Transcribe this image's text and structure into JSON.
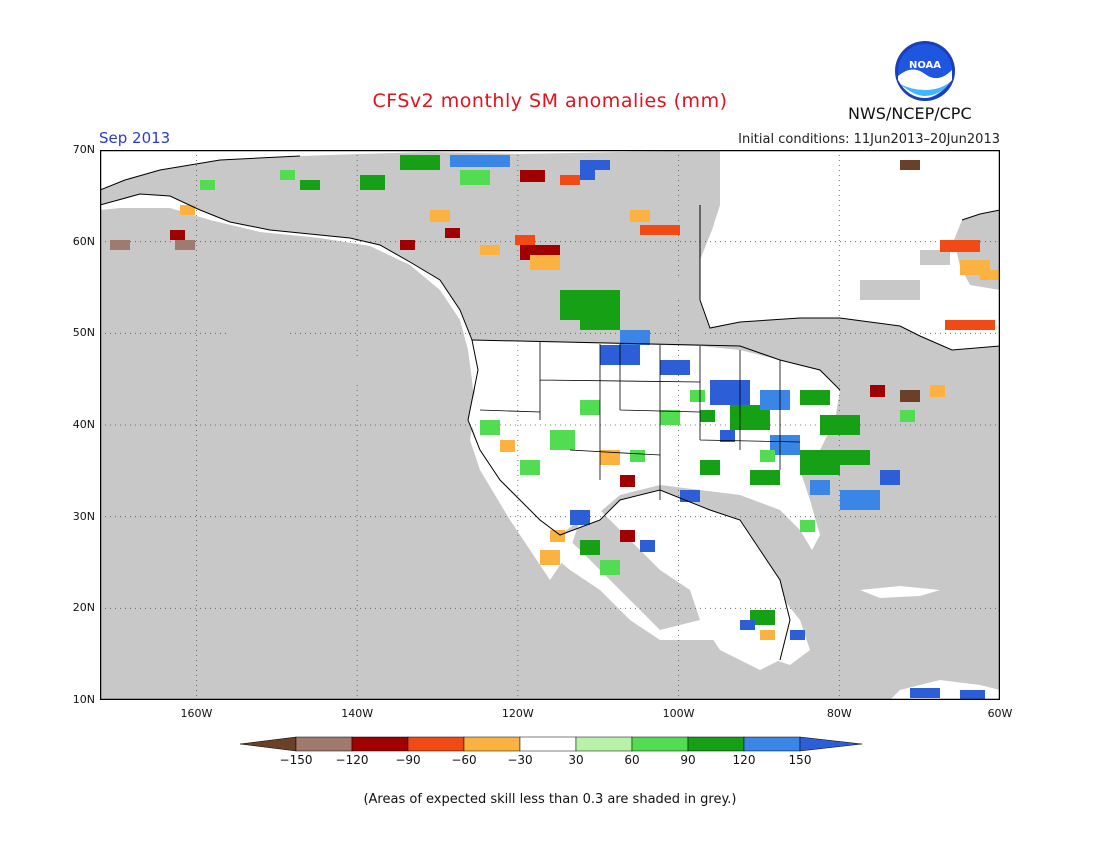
{
  "header": {
    "title": "CFSv2 monthly SM anomalies (mm)",
    "month": "Sep 2013",
    "initial_conditions": "Initial conditions: 11Jun2013–20Jun2013",
    "agency": "NWS/NCEP/CPC",
    "logo_text": "NOAA"
  },
  "map": {
    "lon_range": [
      -172,
      -60
    ],
    "lat_range": [
      10,
      70
    ],
    "lat_labels": [
      "70N",
      "60N",
      "50N",
      "40N",
      "30N",
      "20N",
      "10N"
    ],
    "lon_labels": [
      "160W",
      "140W",
      "120W",
      "100W",
      "80W",
      "60W"
    ],
    "colors": {
      "ocean": "#c8c8c8",
      "land": "#ffffff",
      "low_skill": "#c8c8c8",
      "border": "#000000"
    }
  },
  "legend": {
    "labels": [
      "−150",
      "−120",
      "−90",
      "−60",
      "−30",
      "30",
      "60",
      "90",
      "120",
      "150"
    ],
    "colors": [
      "#6b4028",
      "#a07a6e",
      "#a00000",
      "#f24a14",
      "#fbb240",
      "#ffffff",
      "#b8f2a8",
      "#52dc52",
      "#16a016",
      "#3a86e6",
      "#2c5ed8"
    ]
  },
  "footnote": "(Areas of expected skill less than 0.3 are shaded in grey.)"
}
